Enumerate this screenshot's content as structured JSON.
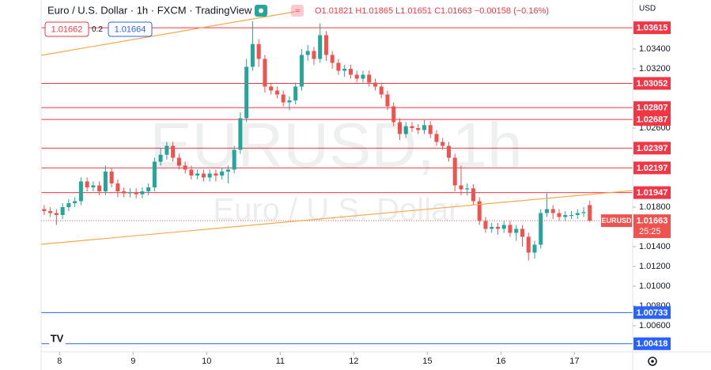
{
  "chart_data": {
    "type": "candlestick",
    "title": "Euro / U.S. Dollar · 1h · FXCM · TradingView",
    "ohlc_legend": "O1.01821 H1.01865 L1.01651 C1.01663 −0.00158 (−0.16%)",
    "bid": "1.01662",
    "spread": "0.2",
    "ask": "1.01664",
    "currency": "USD",
    "watermark": "EURUSD, 1h",
    "watermark_subtitle": "Euro / U.S. Dollar",
    "symbol": "EURUSD",
    "countdown": "25:25",
    "up_color": "#26a69a",
    "down_color": "#ef5350",
    "open": [
      1.0178,
      1.0176,
      1.0174,
      1.0172,
      1.018,
      1.0184,
      1.0186,
      1.0206,
      1.02,
      1.0202,
      1.0196,
      1.0216,
      1.0204,
      1.0196,
      1.0194,
      1.0195,
      1.0193,
      1.0196,
      1.02,
      1.0226,
      1.0233,
      1.0242,
      1.023,
      1.0222,
      1.0218,
      1.0212,
      1.0214,
      1.021,
      1.0214,
      1.0212,
      1.0216,
      1.0218,
      1.0238,
      1.027,
      1.0322,
      1.0345,
      1.033,
      1.0302,
      1.0298,
      1.0294,
      1.0286,
      1.0288,
      1.0302,
      1.0334,
      1.0338,
      1.033,
      1.0354,
      1.0334,
      1.0326,
      1.0318,
      1.032,
      1.0314,
      1.031,
      1.0314,
      1.0306,
      1.0302,
      1.0294,
      1.0282,
      1.0266,
      1.0254,
      1.0262,
      1.026,
      1.0258,
      1.0263,
      1.0254,
      1.0246,
      1.0242,
      1.023,
      1.0202,
      1.0198,
      1.0199,
      1.0186,
      1.0166,
      1.0158,
      1.016,
      1.0158,
      1.0162,
      1.0154,
      1.0158,
      1.015,
      1.0134,
      1.0142,
      1.0174,
      1.0178,
      1.0174,
      1.017,
      1.0172,
      1.0172,
      1.0174,
      1.01821
    ],
    "high": [
      1.0182,
      1.018,
      1.0178,
      1.0184,
      1.0188,
      1.019,
      1.021,
      1.021,
      1.0206,
      1.0206,
      1.0222,
      1.022,
      1.0208,
      1.02,
      1.0199,
      1.0199,
      1.02,
      1.0204,
      1.023,
      1.024,
      1.0246,
      1.0246,
      1.0234,
      1.0226,
      1.0222,
      1.0218,
      1.0218,
      1.0218,
      1.0218,
      1.022,
      1.0222,
      1.0242,
      1.0276,
      1.033,
      1.0368,
      1.035,
      1.0334,
      1.0306,
      1.0302,
      1.0298,
      1.0292,
      1.0306,
      1.034,
      1.0344,
      1.0342,
      1.0366,
      1.0358,
      1.0338,
      1.033,
      1.0324,
      1.0324,
      1.0318,
      1.0318,
      1.0318,
      1.031,
      1.0306,
      1.0298,
      1.0286,
      1.027,
      1.0266,
      1.0266,
      1.0264,
      1.0268,
      1.0267,
      1.0258,
      1.025,
      1.0246,
      1.0234,
      1.0222,
      1.0204,
      1.0203,
      1.019,
      1.017,
      1.0164,
      1.0164,
      1.0166,
      1.0166,
      1.0162,
      1.0162,
      1.0154,
      1.0146,
      1.0178,
      1.0194,
      1.0182,
      1.0178,
      1.0176,
      1.0176,
      1.0178,
      1.018,
      1.01865
    ],
    "low": [
      1.0172,
      1.017,
      1.0162,
      1.0168,
      1.0176,
      1.018,
      1.0182,
      1.0196,
      1.0196,
      1.0192,
      1.0192,
      1.02,
      1.019,
      1.019,
      1.019,
      1.0189,
      1.0189,
      1.0192,
      1.0196,
      1.0222,
      1.0228,
      1.0226,
      1.0218,
      1.0214,
      1.0208,
      1.0208,
      1.0206,
      1.0206,
      1.0206,
      1.0208,
      1.0204,
      1.0214,
      1.0234,
      1.0266,
      1.0318,
      1.0322,
      1.0296,
      1.0294,
      1.029,
      1.0282,
      1.0278,
      1.0284,
      1.0298,
      1.0328,
      1.0324,
      1.0326,
      1.0328,
      1.032,
      1.0314,
      1.0312,
      1.031,
      1.0306,
      1.0306,
      1.0302,
      1.0298,
      1.029,
      1.0278,
      1.0262,
      1.0248,
      1.025,
      1.0256,
      1.0254,
      1.0254,
      1.025,
      1.0242,
      1.0238,
      1.0226,
      1.0196,
      1.0192,
      1.0192,
      1.0182,
      1.0162,
      1.0154,
      1.0154,
      1.0152,
      1.0154,
      1.015,
      1.0146,
      1.014,
      1.0126,
      1.0128,
      1.0138,
      1.017,
      1.0168,
      1.0166,
      1.0166,
      1.0168,
      1.0168,
      1.017,
      1.01651
    ],
    "close": [
      1.0176,
      1.0174,
      1.0172,
      1.018,
      1.0184,
      1.0186,
      1.0206,
      1.02,
      1.0202,
      1.0196,
      1.0216,
      1.0204,
      1.0196,
      1.0194,
      1.0195,
      1.0193,
      1.0196,
      1.02,
      1.0226,
      1.0233,
      1.0242,
      1.023,
      1.0222,
      1.0218,
      1.0212,
      1.0214,
      1.021,
      1.0214,
      1.0212,
      1.0216,
      1.0218,
      1.0238,
      1.027,
      1.0322,
      1.0345,
      1.033,
      1.0302,
      1.0298,
      1.0294,
      1.0286,
      1.0288,
      1.0302,
      1.0334,
      1.0338,
      1.033,
      1.0354,
      1.0334,
      1.0326,
      1.0318,
      1.032,
      1.0314,
      1.031,
      1.0314,
      1.0306,
      1.0302,
      1.0294,
      1.0282,
      1.0266,
      1.0254,
      1.0262,
      1.026,
      1.0258,
      1.0263,
      1.0254,
      1.0246,
      1.0242,
      1.023,
      1.0202,
      1.0198,
      1.0199,
      1.0186,
      1.0166,
      1.0158,
      1.016,
      1.0158,
      1.0162,
      1.0154,
      1.0158,
      1.015,
      1.0134,
      1.0142,
      1.0174,
      1.0178,
      1.0174,
      1.017,
      1.0172,
      1.0172,
      1.0174,
      1.0175,
      1.01663
    ],
    "xlim": [
      -0.5,
      96
    ],
    "xticks": [
      {
        "value": 2.5,
        "label": "8"
      },
      {
        "value": 14.5,
        "label": "9"
      },
      {
        "value": 26.5,
        "label": "10"
      },
      {
        "value": 38.5,
        "label": "11"
      },
      {
        "value": 50.5,
        "label": "12"
      },
      {
        "value": 62.5,
        "label": "15"
      },
      {
        "value": 74.5,
        "label": "16"
      },
      {
        "value": 86.5,
        "label": "17"
      }
    ],
    "ylim": [
      1.00336,
      1.03896
    ],
    "yticks": [
      {
        "value": 1.034,
        "label": "1.03400"
      },
      {
        "value": 1.032,
        "label": "1.03200"
      },
      {
        "value": 1.026,
        "label": "1.02600"
      },
      {
        "value": 1.018,
        "label": "1.01800"
      },
      {
        "value": 1.014,
        "label": "1.01400"
      },
      {
        "value": 1.012,
        "label": "1.01200"
      },
      {
        "value": 1.01,
        "label": "1.01000"
      },
      {
        "value": 1.008,
        "label": "1.00800"
      },
      {
        "value": 1.006,
        "label": "1.00600"
      }
    ],
    "grid": false,
    "hlines": [
      {
        "value": 1.03615,
        "color": "#f23645"
      },
      {
        "value": 1.03052,
        "color": "#f23645"
      },
      {
        "value": 1.02807,
        "color": "#f23645"
      },
      {
        "value": 1.02687,
        "color": "#f23645"
      },
      {
        "value": 1.02397,
        "color": "#f23645"
      },
      {
        "value": 1.02197,
        "color": "#f23645"
      },
      {
        "value": 1.01947,
        "color": "#f23645"
      },
      {
        "value": 1.00733,
        "color": "#2962ff"
      },
      {
        "value": 1.00418,
        "color": "#2962ff"
      }
    ]
  }
}
